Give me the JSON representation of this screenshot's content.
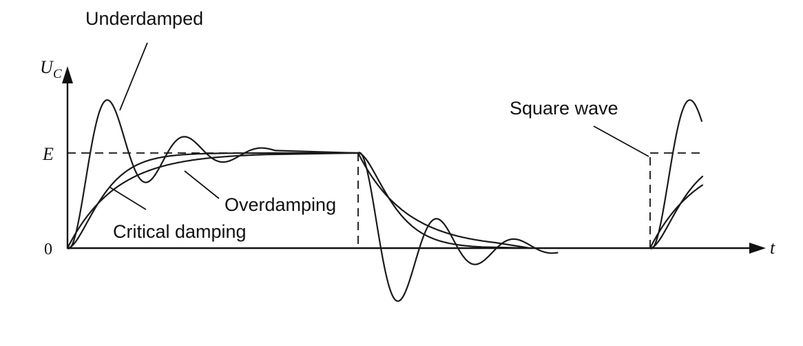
{
  "axes": {
    "y_label_main": "U",
    "y_label_sub": "C",
    "x_label": "t",
    "origin_label": "0",
    "level_label": "E"
  },
  "annotations": {
    "underdamped": "Underdamped",
    "overdamping": "Overdamping",
    "critical_damping": "Critical damping",
    "square_wave": "Square wave"
  },
  "colors": {
    "ink": "#111111",
    "background": "#ffffff"
  }
}
